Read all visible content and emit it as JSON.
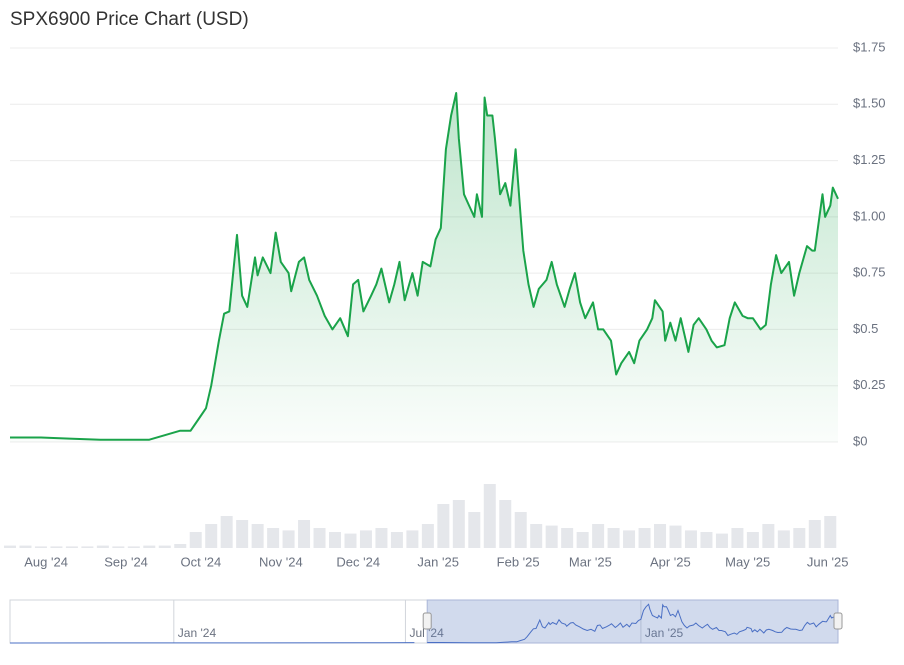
{
  "chart_data": {
    "type": "line",
    "title": "SPX6900 Price Chart (USD)",
    "color": "#1aa34a",
    "grid": true,
    "x": [
      0,
      12,
      23,
      35,
      54,
      60,
      66,
      70,
      73,
      76,
      78,
      81,
      83,
      85,
      88,
      90,
      92,
      95,
      96,
      98,
      101,
      103,
      105,
      108,
      109,
      112,
      114,
      116,
      119,
      122,
      125,
      128,
      131,
      133,
      135,
      137,
      140,
      142,
      144,
      147,
      149,
      151,
      153,
      156,
      158,
      160,
      163,
      165,
      167,
      169,
      171,
      173,
      174,
      176,
      178,
      180,
      181,
      183,
      184,
      185,
      187,
      188,
      190,
      192,
      194,
      196,
      198,
      199,
      201,
      203,
      205,
      208,
      210,
      212,
      215,
      217,
      219,
      221,
      223,
      226,
      228,
      230,
      233,
      235,
      237,
      240,
      242,
      244,
      247,
      249,
      250,
      253,
      254,
      256,
      258,
      260,
      263,
      265,
      267,
      270,
      272,
      274,
      277,
      279,
      281,
      284,
      286,
      288,
      291,
      293,
      295,
      297,
      299,
      302,
      304,
      306,
      309,
      311,
      312,
      315,
      316,
      318,
      319,
      321
    ],
    "values": [
      0.02,
      0.02,
      0.015,
      0.01,
      0.01,
      0.03,
      0.05,
      0.05,
      0.1,
      0.15,
      0.25,
      0.45,
      0.57,
      0.58,
      0.92,
      0.65,
      0.6,
      0.82,
      0.74,
      0.82,
      0.75,
      0.93,
      0.8,
      0.75,
      0.67,
      0.8,
      0.82,
      0.72,
      0.65,
      0.56,
      0.5,
      0.55,
      0.47,
      0.7,
      0.72,
      0.58,
      0.65,
      0.7,
      0.77,
      0.62,
      0.7,
      0.8,
      0.63,
      0.75,
      0.65,
      0.8,
      0.78,
      0.9,
      0.95,
      1.3,
      1.45,
      1.55,
      1.35,
      1.1,
      1.05,
      1.0,
      1.1,
      1.0,
      1.53,
      1.45,
      1.45,
      1.35,
      1.1,
      1.15,
      1.05,
      1.3,
      1.0,
      0.85,
      0.7,
      0.6,
      0.68,
      0.72,
      0.8,
      0.7,
      0.6,
      0.68,
      0.75,
      0.62,
      0.55,
      0.62,
      0.5,
      0.5,
      0.45,
      0.3,
      0.35,
      0.4,
      0.35,
      0.45,
      0.5,
      0.55,
      0.63,
      0.58,
      0.45,
      0.53,
      0.45,
      0.55,
      0.4,
      0.52,
      0.55,
      0.5,
      0.45,
      0.42,
      0.43,
      0.55,
      0.62,
      0.56,
      0.55,
      0.55,
      0.5,
      0.52,
      0.7,
      0.83,
      0.75,
      0.8,
      0.65,
      0.75,
      0.87,
      0.85,
      0.85,
      1.1,
      1.0,
      1.05,
      1.13,
      1.08
    ],
    "xlim": [
      0,
      321
    ],
    "xticks": [
      {
        "value": 14,
        "label": "Aug '24"
      },
      {
        "value": 45,
        "label": "Sep '24"
      },
      {
        "value": 74,
        "label": "Oct '24"
      },
      {
        "value": 105,
        "label": "Nov '24"
      },
      {
        "value": 135,
        "label": "Dec '24"
      },
      {
        "value": 166,
        "label": "Jan '25"
      },
      {
        "value": 197,
        "label": "Feb '25"
      },
      {
        "value": 225,
        "label": "Mar '25"
      },
      {
        "value": 256,
        "label": "Apr '25"
      },
      {
        "value": 286,
        "label": "May '25"
      },
      {
        "value": 317,
        "label": "Jun '25"
      }
    ],
    "ylim": [
      0,
      1.75
    ],
    "yticks": [
      {
        "value": 0,
        "label": "$0"
      },
      {
        "value": 0.25,
        "label": "$0.25"
      },
      {
        "value": 0.5,
        "label": "$0.5"
      },
      {
        "value": 0.75,
        "label": "$0.75"
      },
      {
        "value": 1,
        "label": "$1.00"
      },
      {
        "value": 1.25,
        "label": "$1.25"
      },
      {
        "value": 1.5,
        "label": "$1.50"
      },
      {
        "value": 1.75,
        "label": "$1.75"
      }
    ],
    "volume": {
      "color": "#e5e7eb",
      "ylim": [
        0,
        100
      ],
      "x": [
        0,
        6,
        12,
        18,
        24,
        30,
        36,
        42,
        48,
        54,
        60,
        66,
        72,
        78,
        84,
        90,
        96,
        102,
        108,
        114,
        120,
        126,
        132,
        138,
        144,
        150,
        156,
        162,
        168,
        174,
        180,
        186,
        192,
        198,
        204,
        210,
        216,
        222,
        228,
        234,
        240,
        246,
        252,
        258,
        264,
        270,
        276,
        282,
        288,
        294,
        300,
        306,
        312,
        318
      ],
      "values": [
        3,
        3,
        2,
        2,
        2,
        2,
        3,
        2,
        2,
        3,
        3,
        5,
        20,
        30,
        40,
        35,
        30,
        25,
        22,
        35,
        25,
        20,
        18,
        22,
        25,
        20,
        22,
        30,
        55,
        60,
        45,
        80,
        60,
        45,
        30,
        28,
        25,
        20,
        30,
        25,
        22,
        25,
        30,
        28,
        22,
        20,
        18,
        25,
        20,
        30,
        22,
        25,
        35,
        40
      ]
    },
    "navigator": {
      "color": "#4a6fc4",
      "xlim": [
        -326,
        321
      ],
      "ylim": [
        0,
        1.6
      ],
      "xticks": [
        {
          "value": -198,
          "label": "Jan '24"
        },
        {
          "value": -17,
          "label": "Jul '24"
        },
        {
          "value": 167,
          "label": "Jan '25"
        }
      ],
      "history_x": [
        -326,
        -250,
        -150,
        -50,
        -10
      ],
      "history_values": [
        0.002,
        0.003,
        0.005,
        0.01,
        0.015
      ],
      "selection": [
        0,
        321
      ]
    }
  }
}
